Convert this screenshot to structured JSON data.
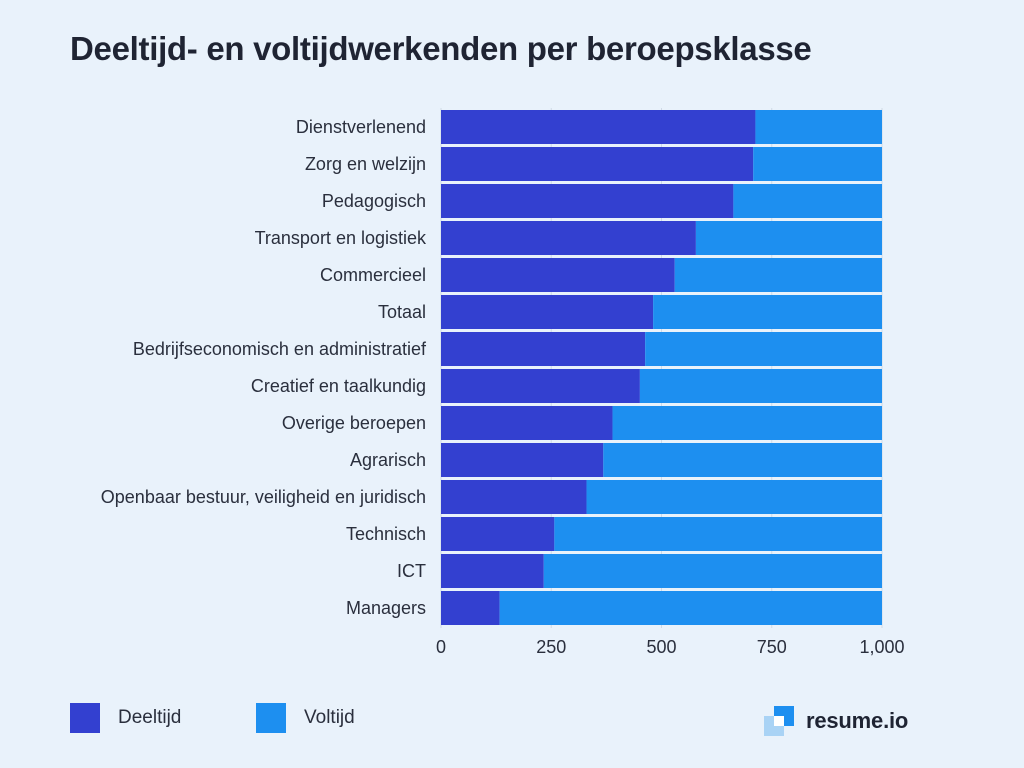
{
  "chart_data": {
    "type": "bar",
    "orientation": "horizontal",
    "stacked": true,
    "title": "Deeltijd- en voltijdwerkenden per beroepsklasse",
    "categories": [
      "Dienstverlenend",
      "Zorg en welzijn",
      "Pedagogisch",
      "Transport en logistiek",
      "Commercieel",
      "Totaal",
      "Bedrijfseconomisch en administratief",
      "Creatief en taalkundig",
      "Overige beroepen",
      "Agrarisch",
      "Openbaar bestuur, veiligheid en juridisch",
      "Technisch",
      "ICT",
      "Managers"
    ],
    "series": [
      {
        "name": "Deeltijd",
        "color": "#3340d0",
        "values": [
          713,
          708,
          663,
          578,
          530,
          481,
          463,
          451,
          389,
          368,
          330,
          257,
          233,
          133
        ]
      },
      {
        "name": "Voltijd",
        "color": "#1d8ff0",
        "values": [
          287,
          292,
          337,
          422,
          470,
          519,
          537,
          549,
          611,
          632,
          670,
          743,
          767,
          867
        ]
      }
    ],
    "xlim": [
      0,
      1000
    ],
    "xticks": [
      0,
      250,
      500,
      750,
      1000
    ],
    "xtick_labels": [
      "0",
      "250",
      "500",
      "750",
      "1,000"
    ],
    "grid": true,
    "legend_position": "bottom-left"
  },
  "legend": {
    "items": [
      {
        "label": "Deeltijd",
        "color": "#3340d0"
      },
      {
        "label": "Voltijd",
        "color": "#1d8ff0"
      }
    ]
  },
  "brand": {
    "name": "resume.io"
  }
}
